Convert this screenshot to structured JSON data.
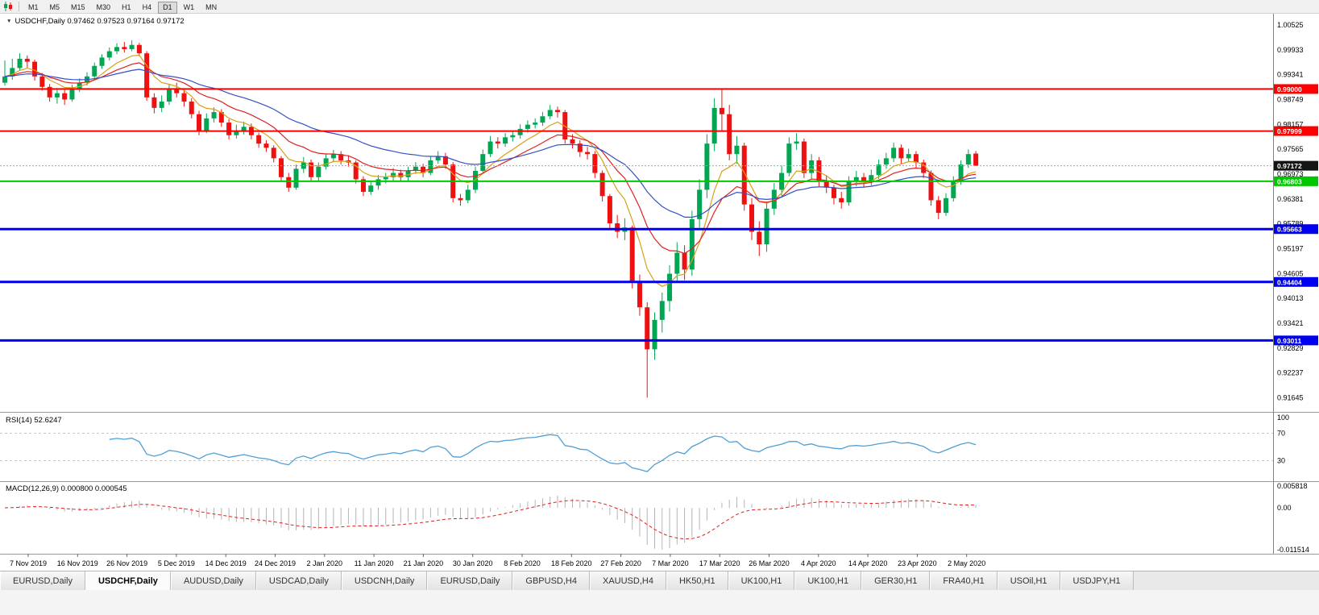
{
  "window": {
    "symbol": "USDCHF,Daily",
    "ohlc_text": "0.97462 0.97523 0.97164 0.97172"
  },
  "toolbar": {
    "timeframes": [
      {
        "label": "M1",
        "active": false
      },
      {
        "label": "M5",
        "active": false
      },
      {
        "label": "M15",
        "active": false
      },
      {
        "label": "M30",
        "active": false
      },
      {
        "label": "H1",
        "active": false
      },
      {
        "label": "H4",
        "active": false
      },
      {
        "label": "D1",
        "active": true
      },
      {
        "label": "W1",
        "active": false
      },
      {
        "label": "MN",
        "active": false
      }
    ]
  },
  "chart_data": {
    "type": "candlestick-with-indicators",
    "symbol": "USDCHF",
    "timeframe": "Daily",
    "colors": {
      "up": "#00a651",
      "down": "#ee1111",
      "bg": "#ffffff",
      "separator": "#9a9a9a",
      "bid_line": "#a8a8a8",
      "bid_label_bg": "#141414",
      "red_line": "#ff0000",
      "green_line": "#00c800",
      "blue_line": "#0000f0"
    },
    "price_axis_labels": [
      "1.00525",
      "0.99933",
      "0.99341",
      "0.98749",
      "0.98157",
      "0.97565",
      "0.96973",
      "0.96381",
      "0.95789",
      "0.95197",
      "0.94605",
      "0.94013",
      "0.93421",
      "0.92829",
      "0.92237",
      "0.91645"
    ],
    "hlines": [
      {
        "price": 0.99,
        "label": "0.99000",
        "color": "#ff0000",
        "width": 2
      },
      {
        "price": 0.97999,
        "label": "0.97999",
        "color": "#ff0000",
        "width": 2
      },
      {
        "price": 0.96803,
        "label": "0.96803",
        "color": "#00c800",
        "width": 2
      },
      {
        "price": 0.95663,
        "label": "0.95663",
        "color": "#0000f0",
        "width": 3
      },
      {
        "price": 0.94404,
        "label": "0.94404",
        "color": "#0000f0",
        "width": 3
      },
      {
        "price": 0.93011,
        "label": "0.93011",
        "color": "#0000f0",
        "width": 3
      }
    ],
    "bid": {
      "price": 0.97172,
      "label": "0.97172"
    },
    "moving_averages": [
      {
        "name": "ma-fast-orange",
        "period": 7,
        "color": "#d9a018"
      },
      {
        "name": "ma-mid-red",
        "period": 14,
        "color": "#e02020"
      },
      {
        "name": "ma-slow-blue",
        "period": 30,
        "color": "#3350c8"
      }
    ],
    "date_labels": [
      "7 Nov 2019",
      "16 Nov 2019",
      "26 Nov 2019",
      "5 Dec 2019",
      "14 Dec 2019",
      "24 Dec 2019",
      "2 Jan 2020",
      "11 Jan 2020",
      "21 Jan 2020",
      "30 Jan 2020",
      "8 Feb 2020",
      "18 Feb 2020",
      "27 Feb 2020",
      "7 Mar 2020",
      "17 Mar 2020",
      "26 Mar 2020",
      "4 Apr 2020",
      "14 Apr 2020",
      "23 Apr 2020",
      "2 May 2020"
    ],
    "candles": [
      [
        0.9915,
        0.9968,
        0.9908,
        0.993
      ],
      [
        0.993,
        0.9972,
        0.9922,
        0.995
      ],
      [
        0.995,
        0.9985,
        0.9945,
        0.9972
      ],
      [
        0.9972,
        0.998,
        0.995,
        0.9965
      ],
      [
        0.9965,
        0.997,
        0.992,
        0.993
      ],
      [
        0.993,
        0.9938,
        0.9896,
        0.9905
      ],
      [
        0.9905,
        0.9912,
        0.987,
        0.988
      ],
      [
        0.988,
        0.9902,
        0.9865,
        0.989
      ],
      [
        0.989,
        0.9898,
        0.9862,
        0.9875
      ],
      [
        0.9875,
        0.991,
        0.987,
        0.99
      ],
      [
        0.99,
        0.9925,
        0.9893,
        0.9915
      ],
      [
        0.9915,
        0.994,
        0.9908,
        0.993
      ],
      [
        0.993,
        0.9963,
        0.9925,
        0.9955
      ],
      [
        0.9955,
        0.9983,
        0.9948,
        0.9975
      ],
      [
        0.9975,
        0.9999,
        0.9968,
        0.999
      ],
      [
        0.999,
        1.0009,
        0.9983,
        1.0
      ],
      [
        1.0,
        1.0012,
        0.9987,
        0.9995
      ],
      [
        0.9995,
        1.0016,
        0.999,
        1.0005
      ],
      [
        1.0005,
        1.001,
        0.9978,
        0.9985
      ],
      [
        0.9985,
        0.999,
        0.9872,
        0.988
      ],
      [
        0.988,
        0.989,
        0.9842,
        0.9855
      ],
      [
        0.9855,
        0.9885,
        0.9845,
        0.987
      ],
      [
        0.987,
        0.9912,
        0.9862,
        0.99
      ],
      [
        0.99,
        0.9915,
        0.988,
        0.989
      ],
      [
        0.989,
        0.9898,
        0.9858,
        0.987
      ],
      [
        0.987,
        0.9878,
        0.983,
        0.984
      ],
      [
        0.984,
        0.9848,
        0.979,
        0.98
      ],
      [
        0.98,
        0.9842,
        0.9795,
        0.983
      ],
      [
        0.983,
        0.9856,
        0.982,
        0.9845
      ],
      [
        0.9845,
        0.9852,
        0.981,
        0.982
      ],
      [
        0.982,
        0.9828,
        0.978,
        0.979
      ],
      [
        0.979,
        0.9815,
        0.9782,
        0.98
      ],
      [
        0.98,
        0.9822,
        0.9792,
        0.981
      ],
      [
        0.981,
        0.9818,
        0.978,
        0.979
      ],
      [
        0.979,
        0.9796,
        0.976,
        0.977
      ],
      [
        0.977,
        0.9778,
        0.975,
        0.976
      ],
      [
        0.976,
        0.9766,
        0.9725,
        0.9735
      ],
      [
        0.9735,
        0.974,
        0.968,
        0.969
      ],
      [
        0.969,
        0.97,
        0.9655,
        0.9665
      ],
      [
        0.9665,
        0.972,
        0.966,
        0.971
      ],
      [
        0.971,
        0.9738,
        0.97,
        0.9725
      ],
      [
        0.9725,
        0.9732,
        0.968,
        0.969
      ],
      [
        0.969,
        0.9725,
        0.9682,
        0.9715
      ],
      [
        0.9715,
        0.9745,
        0.9708,
        0.9735
      ],
      [
        0.9735,
        0.9755,
        0.9726,
        0.9745
      ],
      [
        0.9745,
        0.9752,
        0.972,
        0.973
      ],
      [
        0.973,
        0.9742,
        0.9715,
        0.9725
      ],
      [
        0.9725,
        0.973,
        0.9675,
        0.9685
      ],
      [
        0.9685,
        0.9692,
        0.9645,
        0.9655
      ],
      [
        0.9655,
        0.9682,
        0.9648,
        0.967
      ],
      [
        0.967,
        0.9695,
        0.966,
        0.9685
      ],
      [
        0.9685,
        0.97,
        0.9675,
        0.969
      ],
      [
        0.969,
        0.9712,
        0.9682,
        0.97
      ],
      [
        0.97,
        0.9708,
        0.968,
        0.969
      ],
      [
        0.969,
        0.9715,
        0.9682,
        0.9705
      ],
      [
        0.9705,
        0.9726,
        0.9698,
        0.9715
      ],
      [
        0.9715,
        0.9722,
        0.969,
        0.97
      ],
      [
        0.97,
        0.974,
        0.9695,
        0.973
      ],
      [
        0.973,
        0.9752,
        0.9722,
        0.974
      ],
      [
        0.974,
        0.9748,
        0.971,
        0.972
      ],
      [
        0.972,
        0.9726,
        0.963,
        0.964
      ],
      [
        0.964,
        0.965,
        0.9622,
        0.9635
      ],
      [
        0.9635,
        0.9672,
        0.9628,
        0.966
      ],
      [
        0.966,
        0.9715,
        0.9652,
        0.9705
      ],
      [
        0.9705,
        0.9756,
        0.9698,
        0.9745
      ],
      [
        0.9745,
        0.9788,
        0.9738,
        0.9775
      ],
      [
        0.9775,
        0.9785,
        0.9758,
        0.977
      ],
      [
        0.977,
        0.9795,
        0.9762,
        0.9785
      ],
      [
        0.9785,
        0.98,
        0.9775,
        0.979
      ],
      [
        0.979,
        0.9816,
        0.9782,
        0.9805
      ],
      [
        0.9805,
        0.9825,
        0.9796,
        0.9815
      ],
      [
        0.9815,
        0.983,
        0.9806,
        0.982
      ],
      [
        0.982,
        0.9845,
        0.9812,
        0.9835
      ],
      [
        0.9835,
        0.9862,
        0.9828,
        0.985
      ],
      [
        0.985,
        0.9858,
        0.9832,
        0.9845
      ],
      [
        0.9845,
        0.985,
        0.977,
        0.978
      ],
      [
        0.978,
        0.9792,
        0.9758,
        0.977
      ],
      [
        0.977,
        0.9778,
        0.9738,
        0.975
      ],
      [
        0.975,
        0.9762,
        0.9732,
        0.9745
      ],
      [
        0.9745,
        0.9752,
        0.9688,
        0.97
      ],
      [
        0.97,
        0.9706,
        0.9632,
        0.9645
      ],
      [
        0.9645,
        0.965,
        0.9568,
        0.958
      ],
      [
        0.958,
        0.96,
        0.9545,
        0.956
      ],
      [
        0.956,
        0.9592,
        0.954,
        0.957
      ],
      [
        0.957,
        0.9575,
        0.9425,
        0.944
      ],
      [
        0.944,
        0.9458,
        0.936,
        0.938
      ],
      [
        0.938,
        0.9392,
        0.9165,
        0.928
      ],
      [
        0.928,
        0.9368,
        0.9255,
        0.935
      ],
      [
        0.935,
        0.9415,
        0.932,
        0.9395
      ],
      [
        0.9395,
        0.948,
        0.937,
        0.946
      ],
      [
        0.946,
        0.9535,
        0.944,
        0.951
      ],
      [
        0.951,
        0.9528,
        0.9445,
        0.947
      ],
      [
        0.947,
        0.961,
        0.9455,
        0.959
      ],
      [
        0.959,
        0.9685,
        0.957,
        0.966
      ],
      [
        0.966,
        0.9792,
        0.964,
        0.977
      ],
      [
        0.977,
        0.9878,
        0.9752,
        0.9855
      ],
      [
        0.9855,
        0.9901,
        0.98,
        0.984
      ],
      [
        0.984,
        0.9862,
        0.973,
        0.9745
      ],
      [
        0.9745,
        0.9788,
        0.9722,
        0.9765
      ],
      [
        0.9765,
        0.9772,
        0.961,
        0.9625
      ],
      [
        0.9625,
        0.964,
        0.954,
        0.956
      ],
      [
        0.956,
        0.9585,
        0.9502,
        0.953
      ],
      [
        0.953,
        0.9632,
        0.9512,
        0.9615
      ],
      [
        0.9615,
        0.9676,
        0.96,
        0.966
      ],
      [
        0.966,
        0.9718,
        0.9645,
        0.97
      ],
      [
        0.97,
        0.9785,
        0.9692,
        0.977
      ],
      [
        0.977,
        0.9795,
        0.9755,
        0.9775
      ],
      [
        0.9775,
        0.9782,
        0.9688,
        0.97
      ],
      [
        0.97,
        0.9745,
        0.9685,
        0.973
      ],
      [
        0.973,
        0.9738,
        0.9668,
        0.968
      ],
      [
        0.968,
        0.9695,
        0.9652,
        0.9665
      ],
      [
        0.9665,
        0.9672,
        0.9625,
        0.964
      ],
      [
        0.964,
        0.9655,
        0.9615,
        0.963
      ],
      [
        0.963,
        0.9692,
        0.9622,
        0.968
      ],
      [
        0.968,
        0.9705,
        0.9668,
        0.969
      ],
      [
        0.969,
        0.97,
        0.9665,
        0.968
      ],
      [
        0.968,
        0.9708,
        0.967,
        0.9695
      ],
      [
        0.9695,
        0.9732,
        0.9686,
        0.972
      ],
      [
        0.972,
        0.9748,
        0.971,
        0.9735
      ],
      [
        0.9735,
        0.9772,
        0.9726,
        0.976
      ],
      [
        0.976,
        0.9768,
        0.9722,
        0.9735
      ],
      [
        0.9735,
        0.9758,
        0.9726,
        0.9745
      ],
      [
        0.9745,
        0.9752,
        0.9712,
        0.9725
      ],
      [
        0.9725,
        0.9732,
        0.9688,
        0.97
      ],
      [
        0.97,
        0.9706,
        0.9622,
        0.9635
      ],
      [
        0.9635,
        0.9645,
        0.959,
        0.9605
      ],
      [
        0.9605,
        0.9652,
        0.9598,
        0.964
      ],
      [
        0.964,
        0.9692,
        0.9632,
        0.968
      ],
      [
        0.968,
        0.973,
        0.9672,
        0.972
      ],
      [
        0.972,
        0.9756,
        0.9712,
        0.9745
      ],
      [
        0.97462,
        0.97523,
        0.97164,
        0.97172
      ]
    ]
  },
  "rsi": {
    "label": "RSI(14)",
    "value": "52.6247",
    "period": 14,
    "levels": [
      70,
      30
    ],
    "scale_labels": [
      {
        "text": "100",
        "value": 100
      },
      {
        "text": "70",
        "value": 70
      },
      {
        "text": "30",
        "value": 30
      }
    ],
    "color": "#4f9fd5",
    "level_color": "#c8c8c8"
  },
  "macd": {
    "label": "MACD(12,26,9)",
    "values": "0.000800 0.000545",
    "fast": 12,
    "slow": 26,
    "signal": 9,
    "scale_labels": [
      {
        "text": "0.005818",
        "value": 0.005818
      },
      {
        "text": "0.00",
        "value": 0
      },
      {
        "text": "-0.011514",
        "value": -0.011514
      }
    ],
    "bar_color": "#b4b4b4",
    "signal_color": "#e02020"
  },
  "tabs": [
    {
      "label": "EURUSD,Daily",
      "active": false
    },
    {
      "label": "USDCHF,Daily",
      "active": true
    },
    {
      "label": "AUDUSD,Daily",
      "active": false
    },
    {
      "label": "USDCAD,Daily",
      "active": false
    },
    {
      "label": "USDCNH,Daily",
      "active": false
    },
    {
      "label": "EURUSD,Daily",
      "active": false
    },
    {
      "label": "GBPUSD,H4",
      "active": false
    },
    {
      "label": "XAUUSD,H4",
      "active": false
    },
    {
      "label": "HK50,H1",
      "active": false
    },
    {
      "label": "UK100,H1",
      "active": false
    },
    {
      "label": "UK100,H1",
      "active": false
    },
    {
      "label": "GER30,H1",
      "active": false
    },
    {
      "label": "FRA40,H1",
      "active": false
    },
    {
      "label": "USOil,H1",
      "active": false
    },
    {
      "label": "USDJPY,H1",
      "active": false
    }
  ]
}
